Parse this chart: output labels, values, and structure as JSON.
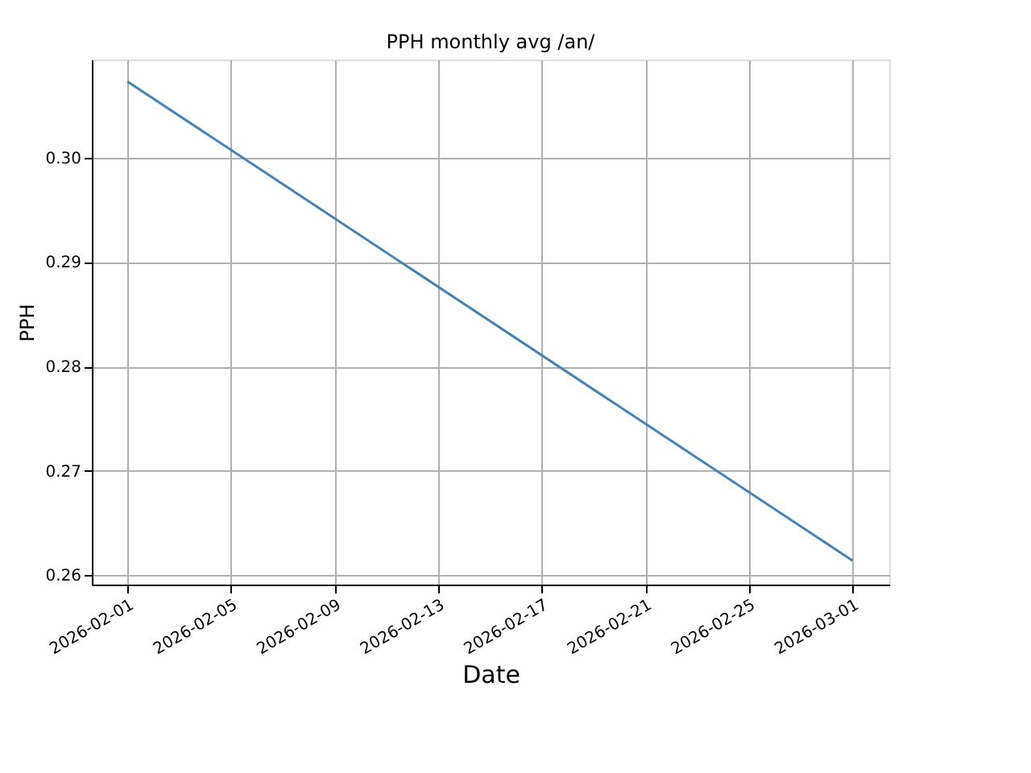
{
  "chart_data": {
    "type": "line",
    "title": "PPH monthly avg /an/",
    "xlabel": "Date",
    "ylabel": "PPH",
    "x": [
      "2026-02-01",
      "2026-03-01"
    ],
    "series": [
      {
        "color": "#4682b4",
        "values": [
          0.3073,
          0.2614
        ]
      }
    ],
    "xlim": [
      "2026-01-30T15:00",
      "2026-03-02T10:00"
    ],
    "xticks": [
      "2026-02-01",
      "2026-02-05",
      "2026-02-09",
      "2026-02-13",
      "2026-02-17",
      "2026-02-21",
      "2026-02-25",
      "2026-03-01"
    ],
    "ylim": [
      0.2591,
      0.3094
    ],
    "yticks": [
      {
        "value": 0.26,
        "label": "0.26"
      },
      {
        "value": 0.27,
        "label": "0.27"
      },
      {
        "value": 0.28,
        "label": "0.28"
      },
      {
        "value": 0.29,
        "label": "0.29"
      },
      {
        "value": 0.3,
        "label": "0.30"
      }
    ],
    "grid": true,
    "marker": "none",
    "line_style": "solid"
  }
}
